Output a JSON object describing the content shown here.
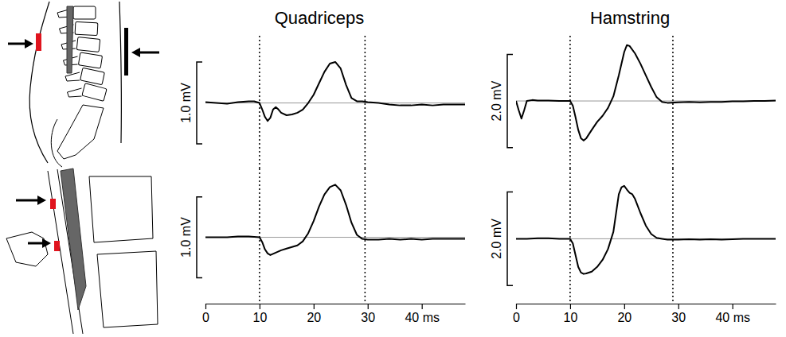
{
  "chart_data": [
    {
      "type": "line",
      "title": "Quadriceps",
      "color": "#000000",
      "xlim": [
        0,
        48
      ],
      "ylim": [
        -0.8,
        0.82
      ],
      "tick_labels": false,
      "baseline": 0,
      "vlines": [
        10,
        29.5
      ],
      "scale_bar": {
        "value": 1.0,
        "label": "1.0 mV"
      },
      "x": [
        0,
        2,
        4,
        6,
        8,
        9,
        10,
        10.5,
        11,
        11.5,
        12,
        12.5,
        13,
        13.5,
        14,
        15,
        16,
        17,
        18,
        19,
        20,
        21,
        22,
        23,
        24,
        25,
        26,
        27,
        28,
        29,
        30,
        32,
        34,
        36,
        38,
        40,
        42,
        44,
        46,
        48
      ],
      "values": [
        0.01,
        0.0,
        -0.01,
        0.01,
        0.02,
        0.02,
        0.0,
        -0.08,
        -0.17,
        -0.22,
        -0.18,
        -0.08,
        -0.05,
        -0.08,
        -0.12,
        -0.15,
        -0.14,
        -0.12,
        -0.08,
        0.0,
        0.1,
        0.24,
        0.38,
        0.48,
        0.5,
        0.42,
        0.22,
        0.06,
        0.02,
        0.02,
        0.01,
        0.0,
        -0.02,
        -0.03,
        -0.03,
        -0.02,
        -0.03,
        -0.02,
        -0.02,
        -0.02
      ]
    },
    {
      "type": "line",
      "color": "#000000",
      "xlim": [
        0,
        48
      ],
      "ylim": [
        -0.8,
        0.85
      ],
      "tick_labels": "x",
      "baseline": 0,
      "xticks": [
        0,
        10,
        20,
        30,
        {
          "value": 40,
          "label": "40 ms"
        }
      ],
      "vlines": [
        10,
        29.5
      ],
      "scale_bar": {
        "value": 1.0,
        "label": "1.0 mV"
      },
      "x": [
        0,
        2,
        4,
        6,
        8,
        10,
        10.5,
        11,
        11.5,
        12,
        13,
        14,
        15,
        16,
        17,
        18,
        19,
        20,
        21,
        22,
        23,
        24,
        25,
        26,
        27,
        28,
        29,
        30,
        32,
        34,
        36,
        38,
        40,
        42,
        44,
        46,
        48
      ],
      "values": [
        0,
        0,
        0,
        0.01,
        0.01,
        0,
        -0.06,
        -0.15,
        -0.2,
        -0.22,
        -0.19,
        -0.16,
        -0.14,
        -0.12,
        -0.1,
        -0.05,
        0.05,
        0.2,
        0.38,
        0.53,
        0.62,
        0.65,
        0.58,
        0.4,
        0.18,
        0.03,
        -0.02,
        -0.03,
        -0.03,
        -0.02,
        -0.03,
        -0.02,
        -0.03,
        -0.02,
        -0.02,
        -0.02,
        -0.02
      ]
    },
    {
      "type": "line",
      "title": "Hamstring",
      "color": "#000000",
      "xlim": [
        0,
        48
      ],
      "ylim": [
        -1.45,
        1.4
      ],
      "tick_labels": false,
      "baseline": 0,
      "vlines": [
        10,
        29
      ],
      "scale_bar": {
        "value": 2.0,
        "label": "2.0 mV"
      },
      "x": [
        0,
        0.5,
        1,
        1.5,
        2,
        3,
        4,
        6,
        8,
        10,
        10.5,
        11,
        11.5,
        12,
        12.5,
        13,
        14,
        15,
        16,
        17,
        18,
        19,
        20,
        20.5,
        21,
        22,
        23,
        24,
        25,
        26,
        27,
        28,
        30,
        32,
        34,
        36,
        38,
        40,
        42,
        44,
        46,
        48
      ],
      "values": [
        0,
        -0.2,
        -0.38,
        -0.2,
        0.0,
        0.02,
        0.01,
        0.01,
        0.0,
        0.0,
        -0.1,
        -0.35,
        -0.62,
        -0.8,
        -0.85,
        -0.8,
        -0.62,
        -0.45,
        -0.32,
        -0.15,
        0.1,
        0.55,
        1.05,
        1.2,
        1.18,
        1.02,
        0.8,
        0.55,
        0.3,
        0.08,
        -0.02,
        -0.04,
        -0.03,
        -0.02,
        -0.03,
        -0.02,
        -0.02,
        -0.01,
        -0.01,
        0,
        0,
        0.01
      ]
    },
    {
      "type": "line",
      "color": "#000000",
      "xlim": [
        0,
        48
      ],
      "ylim": [
        -1.35,
        1.5
      ],
      "tick_labels": "x",
      "baseline": 0,
      "xticks": [
        0,
        10,
        20,
        30,
        {
          "value": 40,
          "label": "40 ms"
        }
      ],
      "vlines": [
        10,
        29
      ],
      "scale_bar": {
        "value": 2.0,
        "label": "2.0 mV"
      },
      "x": [
        0,
        2,
        4,
        6,
        8,
        10,
        10.5,
        11,
        11.5,
        12,
        12.5,
        13,
        14,
        15,
        16,
        17,
        18,
        18.5,
        19,
        19.5,
        20,
        20.5,
        21,
        21.5,
        22,
        23,
        24,
        25,
        26,
        27,
        28,
        30,
        32,
        34,
        36,
        38,
        40,
        42,
        44,
        46,
        48
      ],
      "values": [
        0,
        0,
        0.01,
        0.01,
        0,
        0,
        -0.1,
        -0.35,
        -0.6,
        -0.72,
        -0.75,
        -0.74,
        -0.7,
        -0.6,
        -0.45,
        -0.22,
        0.15,
        0.55,
        0.95,
        1.1,
        1.13,
        1.05,
        0.98,
        0.95,
        0.85,
        0.55,
        0.28,
        0.1,
        0.02,
        0,
        -0.02,
        -0.02,
        -0.01,
        -0.02,
        -0.01,
        -0.02,
        -0.01,
        0,
        0,
        0,
        0
      ]
    }
  ]
}
